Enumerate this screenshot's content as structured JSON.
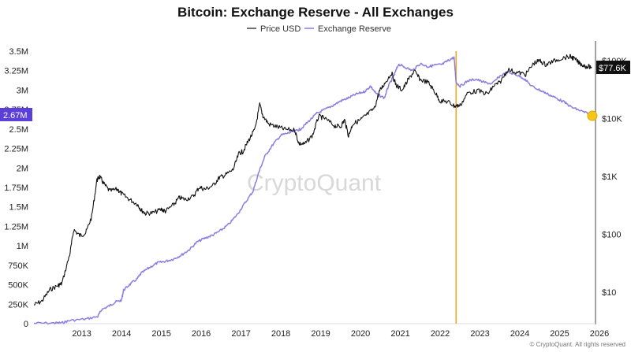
{
  "chart_data": {
    "type": "line",
    "title": "Bitcoin: Exchange Reserve - All Exchanges",
    "watermark": "CryptoQuant",
    "copyright": "© CryptoQuant. All rights reserved",
    "colors": {
      "price": "#111111",
      "reserve": "#8a7fe0",
      "marker": "#f5a623",
      "badge_left": "#5b3fd9",
      "badge_right": "#111111",
      "dot": "#f5c518"
    },
    "legend": {
      "placement": "top-center",
      "items": [
        {
          "label": "Price USD",
          "color": "#111111"
        },
        {
          "label": "Exchange Reserve",
          "color": "#8a7fe0"
        }
      ]
    },
    "x_axis": {
      "range": [
        2012.3,
        2026.4
      ],
      "ticks": [
        "2013",
        "2014",
        "2015",
        "2016",
        "2017",
        "2018",
        "2019",
        "2020",
        "2021",
        "2022",
        "2023",
        "2024",
        "2025",
        "2026"
      ]
    },
    "y_left": {
      "range": [
        0,
        3500000
      ],
      "ticks": [
        "0",
        "250K",
        "500K",
        "750K",
        "1M",
        "1.25M",
        "1.5M",
        "1.75M",
        "2M",
        "2.25M",
        "2.5M",
        "2.75M",
        "3M",
        "3.25M",
        "3.5M"
      ]
    },
    "y_right": {
      "scale": "log",
      "ticks": [
        "$10",
        "$100",
        "$1K",
        "$10K",
        "$100K"
      ]
    },
    "current": {
      "reserve_label": "2.67M",
      "price_label": "$77.6K"
    },
    "vertical_marker_x": 2022.9,
    "series": [
      {
        "name": "Price USD",
        "axis": "right",
        "points": [
          [
            2012.3,
            6
          ],
          [
            2012.5,
            7
          ],
          [
            2012.7,
            11
          ],
          [
            2012.9,
            13
          ],
          [
            2013.0,
            14
          ],
          [
            2013.2,
            45
          ],
          [
            2013.3,
            120
          ],
          [
            2013.45,
            95
          ],
          [
            2013.6,
            105
          ],
          [
            2013.75,
            200
          ],
          [
            2013.88,
            850
          ],
          [
            2013.95,
            1000
          ],
          [
            2014.05,
            750
          ],
          [
            2014.2,
            560
          ],
          [
            2014.4,
            600
          ],
          [
            2014.5,
            500
          ],
          [
            2014.7,
            400
          ],
          [
            2014.9,
            330
          ],
          [
            2015.0,
            260
          ],
          [
            2015.1,
            230
          ],
          [
            2015.3,
            235
          ],
          [
            2015.5,
            270
          ],
          [
            2015.6,
            250
          ],
          [
            2015.8,
            320
          ],
          [
            2015.95,
            430
          ],
          [
            2016.1,
            400
          ],
          [
            2016.3,
            450
          ],
          [
            2016.45,
            650
          ],
          [
            2016.6,
            600
          ],
          [
            2016.8,
            700
          ],
          [
            2016.95,
            950
          ],
          [
            2017.1,
            1050
          ],
          [
            2017.3,
            1300
          ],
          [
            2017.45,
            2500
          ],
          [
            2017.55,
            2700
          ],
          [
            2017.7,
            4300
          ],
          [
            2017.85,
            6500
          ],
          [
            2017.97,
            17500
          ],
          [
            2018.05,
            11000
          ],
          [
            2018.2,
            8000
          ],
          [
            2018.4,
            7200
          ],
          [
            2018.6,
            6500
          ],
          [
            2018.85,
            6300
          ],
          [
            2018.95,
            3700
          ],
          [
            2019.1,
            3600
          ],
          [
            2019.3,
            5200
          ],
          [
            2019.45,
            11000
          ],
          [
            2019.6,
            10000
          ],
          [
            2019.85,
            7500
          ],
          [
            2020.0,
            7200
          ],
          [
            2020.1,
            9500
          ],
          [
            2020.2,
            5000
          ],
          [
            2020.3,
            8000
          ],
          [
            2020.5,
            9500
          ],
          [
            2020.65,
            11500
          ],
          [
            2020.85,
            15000
          ],
          [
            2020.97,
            29000
          ],
          [
            2021.1,
            40000
          ],
          [
            2021.28,
            61000
          ],
          [
            2021.4,
            37000
          ],
          [
            2021.55,
            31000
          ],
          [
            2021.7,
            47000
          ],
          [
            2021.85,
            66000
          ],
          [
            2022.0,
            47000
          ],
          [
            2022.2,
            42000
          ],
          [
            2022.35,
            30000
          ],
          [
            2022.5,
            20000
          ],
          [
            2022.7,
            19500
          ],
          [
            2022.85,
            16500
          ],
          [
            2023.0,
            16800
          ],
          [
            2023.2,
            28000
          ],
          [
            2023.45,
            30000
          ],
          [
            2023.7,
            26500
          ],
          [
            2023.85,
            37000
          ],
          [
            2024.0,
            42000
          ],
          [
            2024.2,
            70000
          ],
          [
            2024.45,
            62000
          ],
          [
            2024.65,
            58000
          ],
          [
            2024.85,
            90000
          ],
          [
            2025.0,
            100000
          ],
          [
            2025.15,
            85000
          ],
          [
            2025.3,
            95000
          ],
          [
            2025.5,
            108000
          ],
          [
            2025.75,
            118000
          ],
          [
            2025.85,
            110000
          ],
          [
            2026.0,
            90000
          ],
          [
            2026.15,
            80000
          ],
          [
            2026.3,
            77600
          ]
        ]
      },
      {
        "name": "Exchange Reserve",
        "axis": "left",
        "points": [
          [
            2012.3,
            5000
          ],
          [
            2012.8,
            8000
          ],
          [
            2013.0,
            10000
          ],
          [
            2013.2,
            40000
          ],
          [
            2013.6,
            60000
          ],
          [
            2013.9,
            90000
          ],
          [
            2014.0,
            180000
          ],
          [
            2014.2,
            230000
          ],
          [
            2014.35,
            280000
          ],
          [
            2014.5,
            300000
          ],
          [
            2014.55,
            430000
          ],
          [
            2014.7,
            500000
          ],
          [
            2014.9,
            580000
          ],
          [
            2015.0,
            650000
          ],
          [
            2015.2,
            720000
          ],
          [
            2015.4,
            780000
          ],
          [
            2015.6,
            800000
          ],
          [
            2015.8,
            830000
          ],
          [
            2016.0,
            880000
          ],
          [
            2016.2,
            950000
          ],
          [
            2016.4,
            1050000
          ],
          [
            2016.6,
            1100000
          ],
          [
            2016.8,
            1140000
          ],
          [
            2017.0,
            1200000
          ],
          [
            2017.2,
            1280000
          ],
          [
            2017.4,
            1400000
          ],
          [
            2017.6,
            1550000
          ],
          [
            2017.8,
            1700000
          ],
          [
            2017.95,
            1950000
          ],
          [
            2018.1,
            2150000
          ],
          [
            2018.3,
            2300000
          ],
          [
            2018.5,
            2420000
          ],
          [
            2018.7,
            2450000
          ],
          [
            2018.9,
            2480000
          ],
          [
            2019.0,
            2500000
          ],
          [
            2019.2,
            2600000
          ],
          [
            2019.4,
            2700000
          ],
          [
            2019.6,
            2750000
          ],
          [
            2019.8,
            2800000
          ],
          [
            2020.0,
            2860000
          ],
          [
            2020.2,
            2900000
          ],
          [
            2020.4,
            2950000
          ],
          [
            2020.6,
            2980000
          ],
          [
            2020.75,
            3050000
          ],
          [
            2020.9,
            2950000
          ],
          [
            2021.1,
            2900000
          ],
          [
            2021.2,
            3050000
          ],
          [
            2021.35,
            3200000
          ],
          [
            2021.45,
            3330000
          ],
          [
            2021.6,
            3300000
          ],
          [
            2021.8,
            3250000
          ],
          [
            2022.0,
            3340000
          ],
          [
            2022.2,
            3300000
          ],
          [
            2022.35,
            3320000
          ],
          [
            2022.55,
            3330000
          ],
          [
            2022.7,
            3380000
          ],
          [
            2022.85,
            3420000
          ],
          [
            2022.9,
            3100000
          ],
          [
            2023.0,
            3050000
          ],
          [
            2023.2,
            3120000
          ],
          [
            2023.4,
            3140000
          ],
          [
            2023.6,
            3100000
          ],
          [
            2023.8,
            3080000
          ],
          [
            2024.0,
            3180000
          ],
          [
            2024.2,
            3230000
          ],
          [
            2024.4,
            3200000
          ],
          [
            2024.6,
            3150000
          ],
          [
            2024.8,
            3050000
          ],
          [
            2025.0,
            3000000
          ],
          [
            2025.2,
            2950000
          ],
          [
            2025.4,
            2900000
          ],
          [
            2025.6,
            2850000
          ],
          [
            2025.8,
            2780000
          ],
          [
            2026.0,
            2740000
          ],
          [
            2026.2,
            2700000
          ],
          [
            2026.3,
            2670000
          ]
        ]
      }
    ]
  }
}
